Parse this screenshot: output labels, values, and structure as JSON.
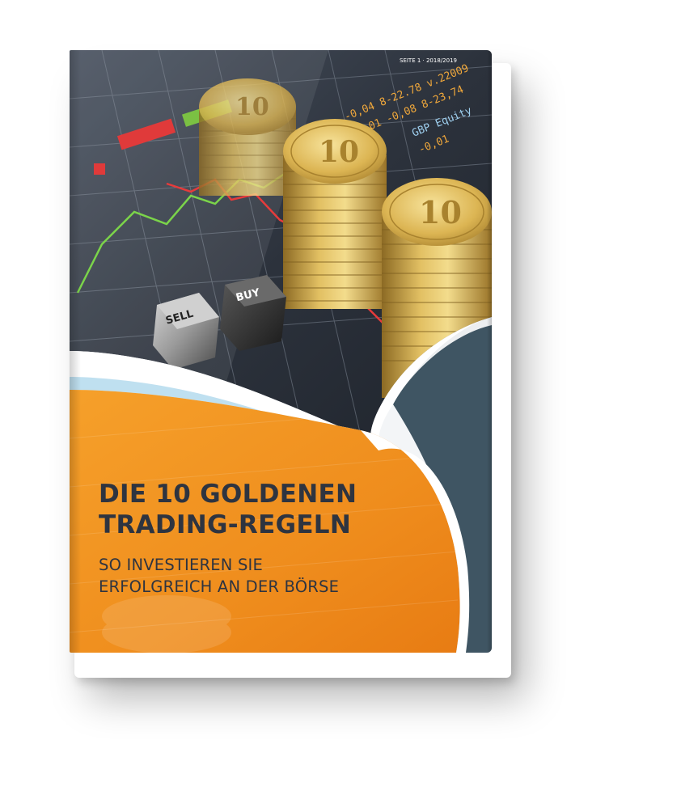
{
  "cover": {
    "title_line1": "DIE 10 GOLDENEN",
    "title_line2": "TRADING-REGELN",
    "subtitle_line1": "SO INVESTIEREN SIE",
    "subtitle_line2": "ERFOLGREICH AN DER BÖRSE",
    "corner_text": "SEITE 1 · 2018/2019"
  },
  "dice": {
    "sell_label": "SELL",
    "buy_label": "BUY"
  },
  "coins": {
    "denomination": "10"
  },
  "ticker": {
    "lines": [
      "-0,04 8-22.78 v.22009",
      "-0,01 -0,08 8-23,74",
      "GBP Equity",
      "-0,01"
    ]
  },
  "colors": {
    "orange": "#f0901e",
    "dark_orange": "#e07a10",
    "slate": "#3f5563",
    "light_blue": "#bfe0f0",
    "gold": "#d9b24c",
    "title_text": "#2e3440"
  }
}
